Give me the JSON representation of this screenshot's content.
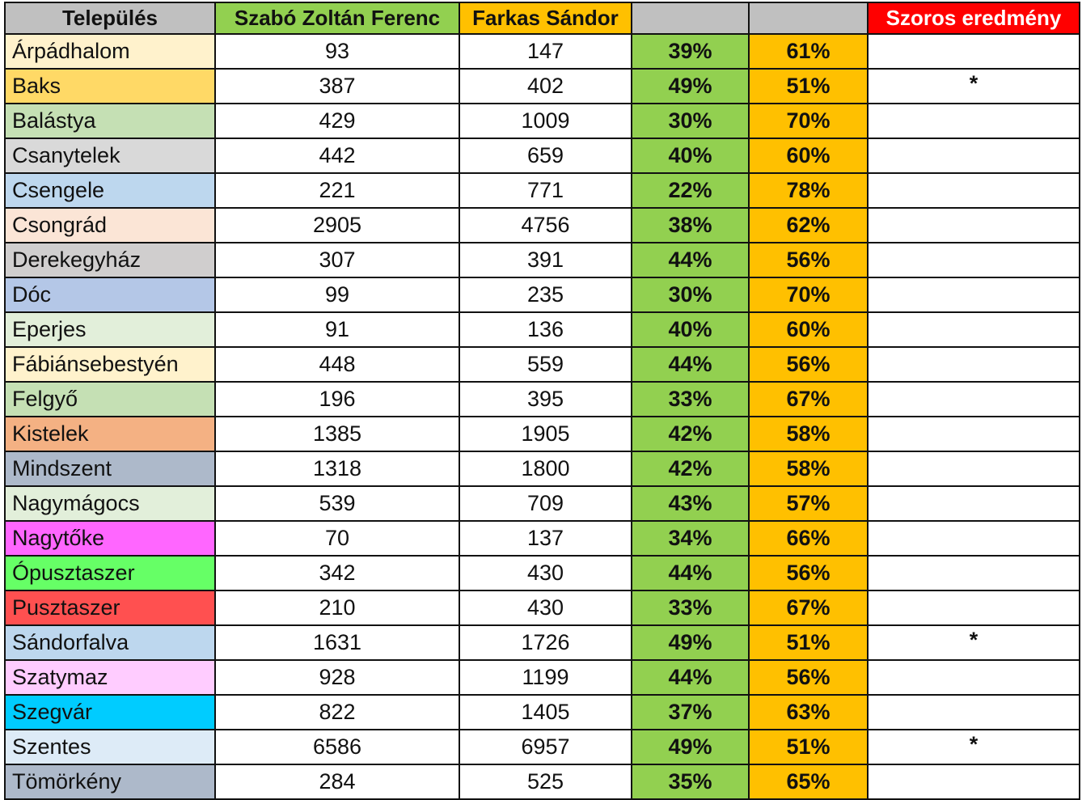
{
  "colors": {
    "header_grey": "#c0c0c0",
    "szabo": "#92d050",
    "farkas": "#ffc000",
    "close_header": "#ff0000"
  },
  "headers": {
    "settlement": "Település",
    "szabo": "Szabó Zoltán Ferenc",
    "farkas": "Farkas Sándor",
    "szabo_pct": "",
    "farkas_pct": "",
    "close": "Szoros eredmény"
  },
  "rows": [
    {
      "name": "Árpádhalom",
      "color": "#fff2cc",
      "szabo": "93",
      "farkas": "147",
      "szabo_pct": "39%",
      "farkas_pct": "61%",
      "close": ""
    },
    {
      "name": "Baks",
      "color": "#ffd966",
      "szabo": "387",
      "farkas": "402",
      "szabo_pct": "49%",
      "farkas_pct": "51%",
      "close": "*"
    },
    {
      "name": "Balástya",
      "color": "#c5e0b4",
      "szabo": "429",
      "farkas": "1009",
      "szabo_pct": "30%",
      "farkas_pct": "70%",
      "close": ""
    },
    {
      "name": "Csanytelek",
      "color": "#d9d9d9",
      "szabo": "442",
      "farkas": "659",
      "szabo_pct": "40%",
      "farkas_pct": "60%",
      "close": ""
    },
    {
      "name": "Csengele",
      "color": "#bdd7ee",
      "szabo": "221",
      "farkas": "771",
      "szabo_pct": "22%",
      "farkas_pct": "78%",
      "close": ""
    },
    {
      "name": "Csongrád",
      "color": "#fbe5d6",
      "szabo": "2905",
      "farkas": "4756",
      "szabo_pct": "38%",
      "farkas_pct": "62%",
      "close": ""
    },
    {
      "name": "Derekegyház",
      "color": "#d0cece",
      "szabo": "307",
      "farkas": "391",
      "szabo_pct": "44%",
      "farkas_pct": "56%",
      "close": ""
    },
    {
      "name": "Dóc",
      "color": "#b4c7e7",
      "szabo": "99",
      "farkas": "235",
      "szabo_pct": "30%",
      "farkas_pct": "70%",
      "close": ""
    },
    {
      "name": "Eperjes",
      "color": "#e2efda",
      "szabo": "91",
      "farkas": "136",
      "szabo_pct": "40%",
      "farkas_pct": "60%",
      "close": ""
    },
    {
      "name": "Fábiánsebestyén",
      "color": "#fff2cc",
      "szabo": "448",
      "farkas": "559",
      "szabo_pct": "44%",
      "farkas_pct": "56%",
      "close": ""
    },
    {
      "name": "Felgyő",
      "color": "#c5e0b4",
      "szabo": "196",
      "farkas": "395",
      "szabo_pct": "33%",
      "farkas_pct": "67%",
      "close": ""
    },
    {
      "name": "Kistelek",
      "color": "#f4b183",
      "szabo": "1385",
      "farkas": "1905",
      "szabo_pct": "42%",
      "farkas_pct": "58%",
      "close": ""
    },
    {
      "name": "Mindszent",
      "color": "#adb9ca",
      "szabo": "1318",
      "farkas": "1800",
      "szabo_pct": "42%",
      "farkas_pct": "58%",
      "close": ""
    },
    {
      "name": "Nagymágocs",
      "color": "#e2efda",
      "szabo": "539",
      "farkas": "709",
      "szabo_pct": "43%",
      "farkas_pct": "57%",
      "close": ""
    },
    {
      "name": "Nagytőke",
      "color": "#ff66ff",
      "szabo": "70",
      "farkas": "137",
      "szabo_pct": "34%",
      "farkas_pct": "66%",
      "close": ""
    },
    {
      "name": "Ópusztaszer",
      "color": "#66ff66",
      "szabo": "342",
      "farkas": "430",
      "szabo_pct": "44%",
      "farkas_pct": "56%",
      "close": ""
    },
    {
      "name": "Pusztaszer",
      "color": "#ff5050",
      "szabo": "210",
      "farkas": "430",
      "szabo_pct": "33%",
      "farkas_pct": "67%",
      "close": ""
    },
    {
      "name": "Sándorfalva",
      "color": "#bdd7ee",
      "szabo": "1631",
      "farkas": "1726",
      "szabo_pct": "49%",
      "farkas_pct": "51%",
      "close": "*"
    },
    {
      "name": "Szatymaz",
      "color": "#ffccff",
      "szabo": "928",
      "farkas": "1199",
      "szabo_pct": "44%",
      "farkas_pct": "56%",
      "close": ""
    },
    {
      "name": "Szegvár",
      "color": "#00ccff",
      "szabo": "822",
      "farkas": "1405",
      "szabo_pct": "37%",
      "farkas_pct": "63%",
      "close": ""
    },
    {
      "name": "Szentes",
      "color": "#ddebf7",
      "szabo": "6586",
      "farkas": "6957",
      "szabo_pct": "49%",
      "farkas_pct": "51%",
      "close": "*"
    },
    {
      "name": "Tömörkény",
      "color": "#adb9ca",
      "szabo": "284",
      "farkas": "525",
      "szabo_pct": "35%",
      "farkas_pct": "65%",
      "close": ""
    }
  ]
}
